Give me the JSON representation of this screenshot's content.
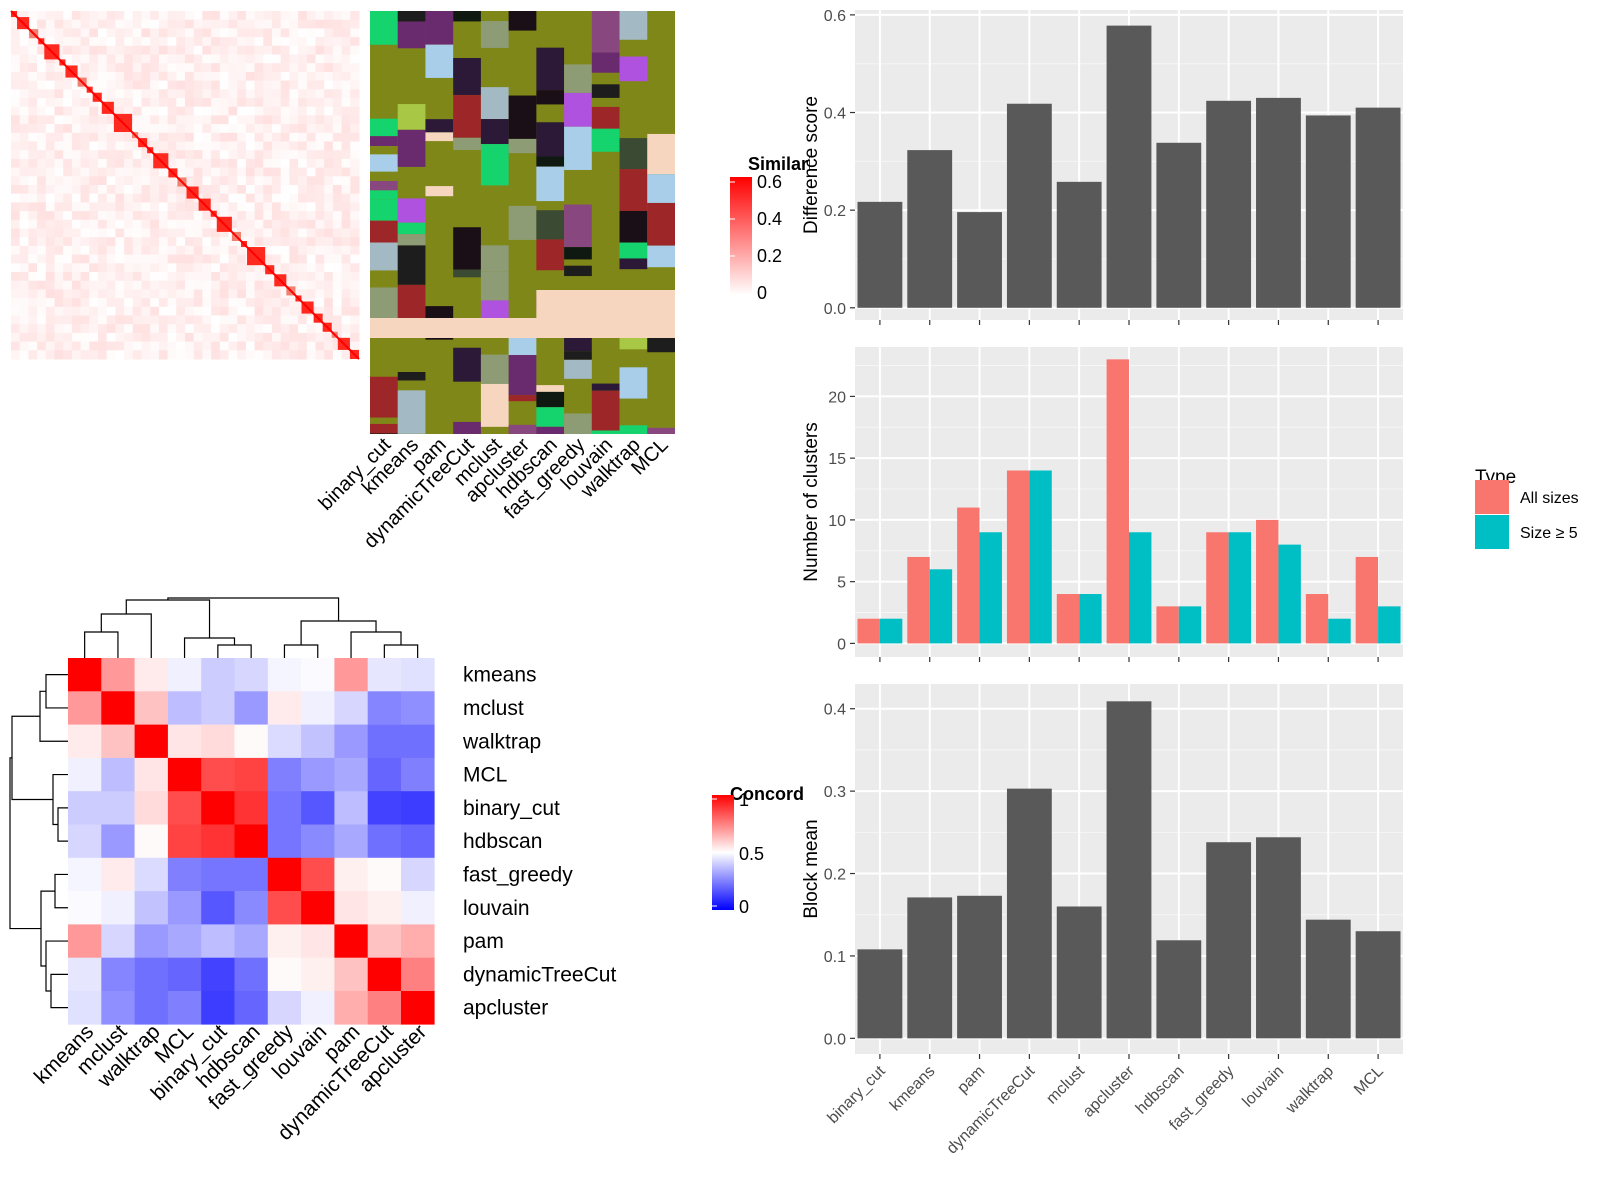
{
  "methods_order": [
    "binary_cut",
    "kmeans",
    "pam",
    "dynamicTreeCut",
    "mclust",
    "apcluster",
    "hdbscan",
    "fast_greedy",
    "louvain",
    "walktrap",
    "MCL"
  ],
  "similarity_panel": {
    "legend_title": "Similarity",
    "legend_ticks": [
      "0.6",
      "0.4",
      "0.2",
      "0"
    ],
    "column_labels": [
      "binary_cut",
      "kmeans",
      "pam",
      "dynamicTreeCut",
      "mclust",
      "apcluster",
      "hdbscan",
      "fast_greedy",
      "louvain",
      "walktrap",
      "MCL"
    ],
    "block_sizes": [
      2,
      4,
      3,
      2,
      5,
      2,
      4,
      3,
      2,
      3,
      4,
      6,
      2,
      3,
      2,
      5,
      3,
      3,
      4,
      4,
      2,
      5,
      3,
      2,
      6,
      3,
      4,
      3,
      2,
      4,
      3,
      3,
      2,
      4,
      3
    ]
  },
  "concordance_panel": {
    "legend_title": "Concordance",
    "legend_ticks": [
      "1",
      "0.5",
      "0"
    ],
    "labels": [
      "kmeans",
      "mclust",
      "walktrap",
      "MCL",
      "binary_cut",
      "hdbscan",
      "fast_greedy",
      "louvain",
      "pam",
      "dynamicTreeCut",
      "apcluster"
    ],
    "matrix": [
      [
        1.0,
        0.7,
        0.54,
        0.47,
        0.4,
        0.42,
        0.48,
        0.49,
        0.7,
        0.45,
        0.44
      ],
      [
        0.7,
        1.0,
        0.62,
        0.37,
        0.4,
        0.3,
        0.54,
        0.47,
        0.42,
        0.26,
        0.28
      ],
      [
        0.54,
        0.62,
        1.0,
        0.55,
        0.57,
        0.51,
        0.43,
        0.38,
        0.3,
        0.22,
        0.22
      ],
      [
        0.47,
        0.37,
        0.55,
        1.0,
        0.85,
        0.87,
        0.25,
        0.3,
        0.33,
        0.2,
        0.25
      ],
      [
        0.4,
        0.4,
        0.57,
        0.85,
        1.0,
        0.9,
        0.23,
        0.17,
        0.37,
        0.13,
        0.12
      ],
      [
        0.42,
        0.3,
        0.51,
        0.87,
        0.9,
        1.0,
        0.23,
        0.27,
        0.33,
        0.22,
        0.2
      ],
      [
        0.48,
        0.54,
        0.43,
        0.25,
        0.23,
        0.23,
        1.0,
        0.85,
        0.53,
        0.51,
        0.42
      ],
      [
        0.49,
        0.47,
        0.38,
        0.3,
        0.17,
        0.27,
        0.85,
        1.0,
        0.55,
        0.53,
        0.47
      ],
      [
        0.7,
        0.42,
        0.3,
        0.33,
        0.37,
        0.33,
        0.53,
        0.55,
        1.0,
        0.62,
        0.66
      ],
      [
        0.45,
        0.26,
        0.22,
        0.2,
        0.13,
        0.22,
        0.51,
        0.53,
        0.62,
        1.0,
        0.75
      ],
      [
        0.44,
        0.28,
        0.22,
        0.25,
        0.12,
        0.2,
        0.42,
        0.47,
        0.66,
        0.75,
        1.0
      ]
    ]
  },
  "chart_data": [
    {
      "type": "bar",
      "categories": [
        "binary_cut",
        "kmeans",
        "pam",
        "dynamicTreeCut",
        "mclust",
        "apcluster",
        "hdbscan",
        "fast_greedy",
        "louvain",
        "walktrap",
        "MCL"
      ],
      "values": [
        0.217,
        0.323,
        0.196,
        0.418,
        0.258,
        0.578,
        0.338,
        0.424,
        0.43,
        0.394,
        0.41
      ],
      "ylabel": "Difference score",
      "ylim": [
        -0.025,
        0.61
      ],
      "yticks": [
        0.0,
        0.2,
        0.4,
        0.6
      ],
      "ytick_labels": [
        "0.0",
        "0.2",
        "0.4",
        "0.6"
      ],
      "bar_color": "#595959",
      "grid": true
    },
    {
      "type": "bar",
      "categories": [
        "binary_cut",
        "kmeans",
        "pam",
        "dynamicTreeCut",
        "mclust",
        "apcluster",
        "hdbscan",
        "fast_greedy",
        "louvain",
        "walktrap",
        "MCL"
      ],
      "series": [
        {
          "name": "All sizes",
          "values": [
            2,
            7,
            11,
            14,
            4,
            23,
            3,
            9,
            10,
            4,
            7
          ],
          "color": "#F8766D"
        },
        {
          "name": "Size ≥ 5",
          "values": [
            2,
            6,
            9,
            14,
            4,
            9,
            3,
            9,
            8,
            2,
            3
          ],
          "color": "#00BFC4"
        }
      ],
      "ylabel": "Number of clusters",
      "ylim": [
        -1.1,
        24.0
      ],
      "yticks": [
        0,
        5,
        10,
        15,
        20
      ],
      "ytick_labels": [
        "0",
        "5",
        "10",
        "15",
        "20"
      ],
      "legend_title": "Type",
      "legend_position": "right",
      "grid": true
    },
    {
      "type": "bar",
      "categories": [
        "binary_cut",
        "kmeans",
        "pam",
        "dynamicTreeCut",
        "mclust",
        "apcluster",
        "hdbscan",
        "fast_greedy",
        "louvain",
        "walktrap",
        "MCL"
      ],
      "values": [
        0.108,
        0.171,
        0.173,
        0.303,
        0.16,
        0.409,
        0.119,
        0.238,
        0.244,
        0.144,
        0.13
      ],
      "ylabel": "Block mean",
      "ylim": [
        -0.019,
        0.43
      ],
      "yticks": [
        0.0,
        0.1,
        0.2,
        0.3,
        0.4
      ],
      "ytick_labels": [
        "0.0",
        "0.1",
        "0.2",
        "0.3",
        "0.4"
      ],
      "bar_color": "#595959",
      "grid": true
    }
  ]
}
